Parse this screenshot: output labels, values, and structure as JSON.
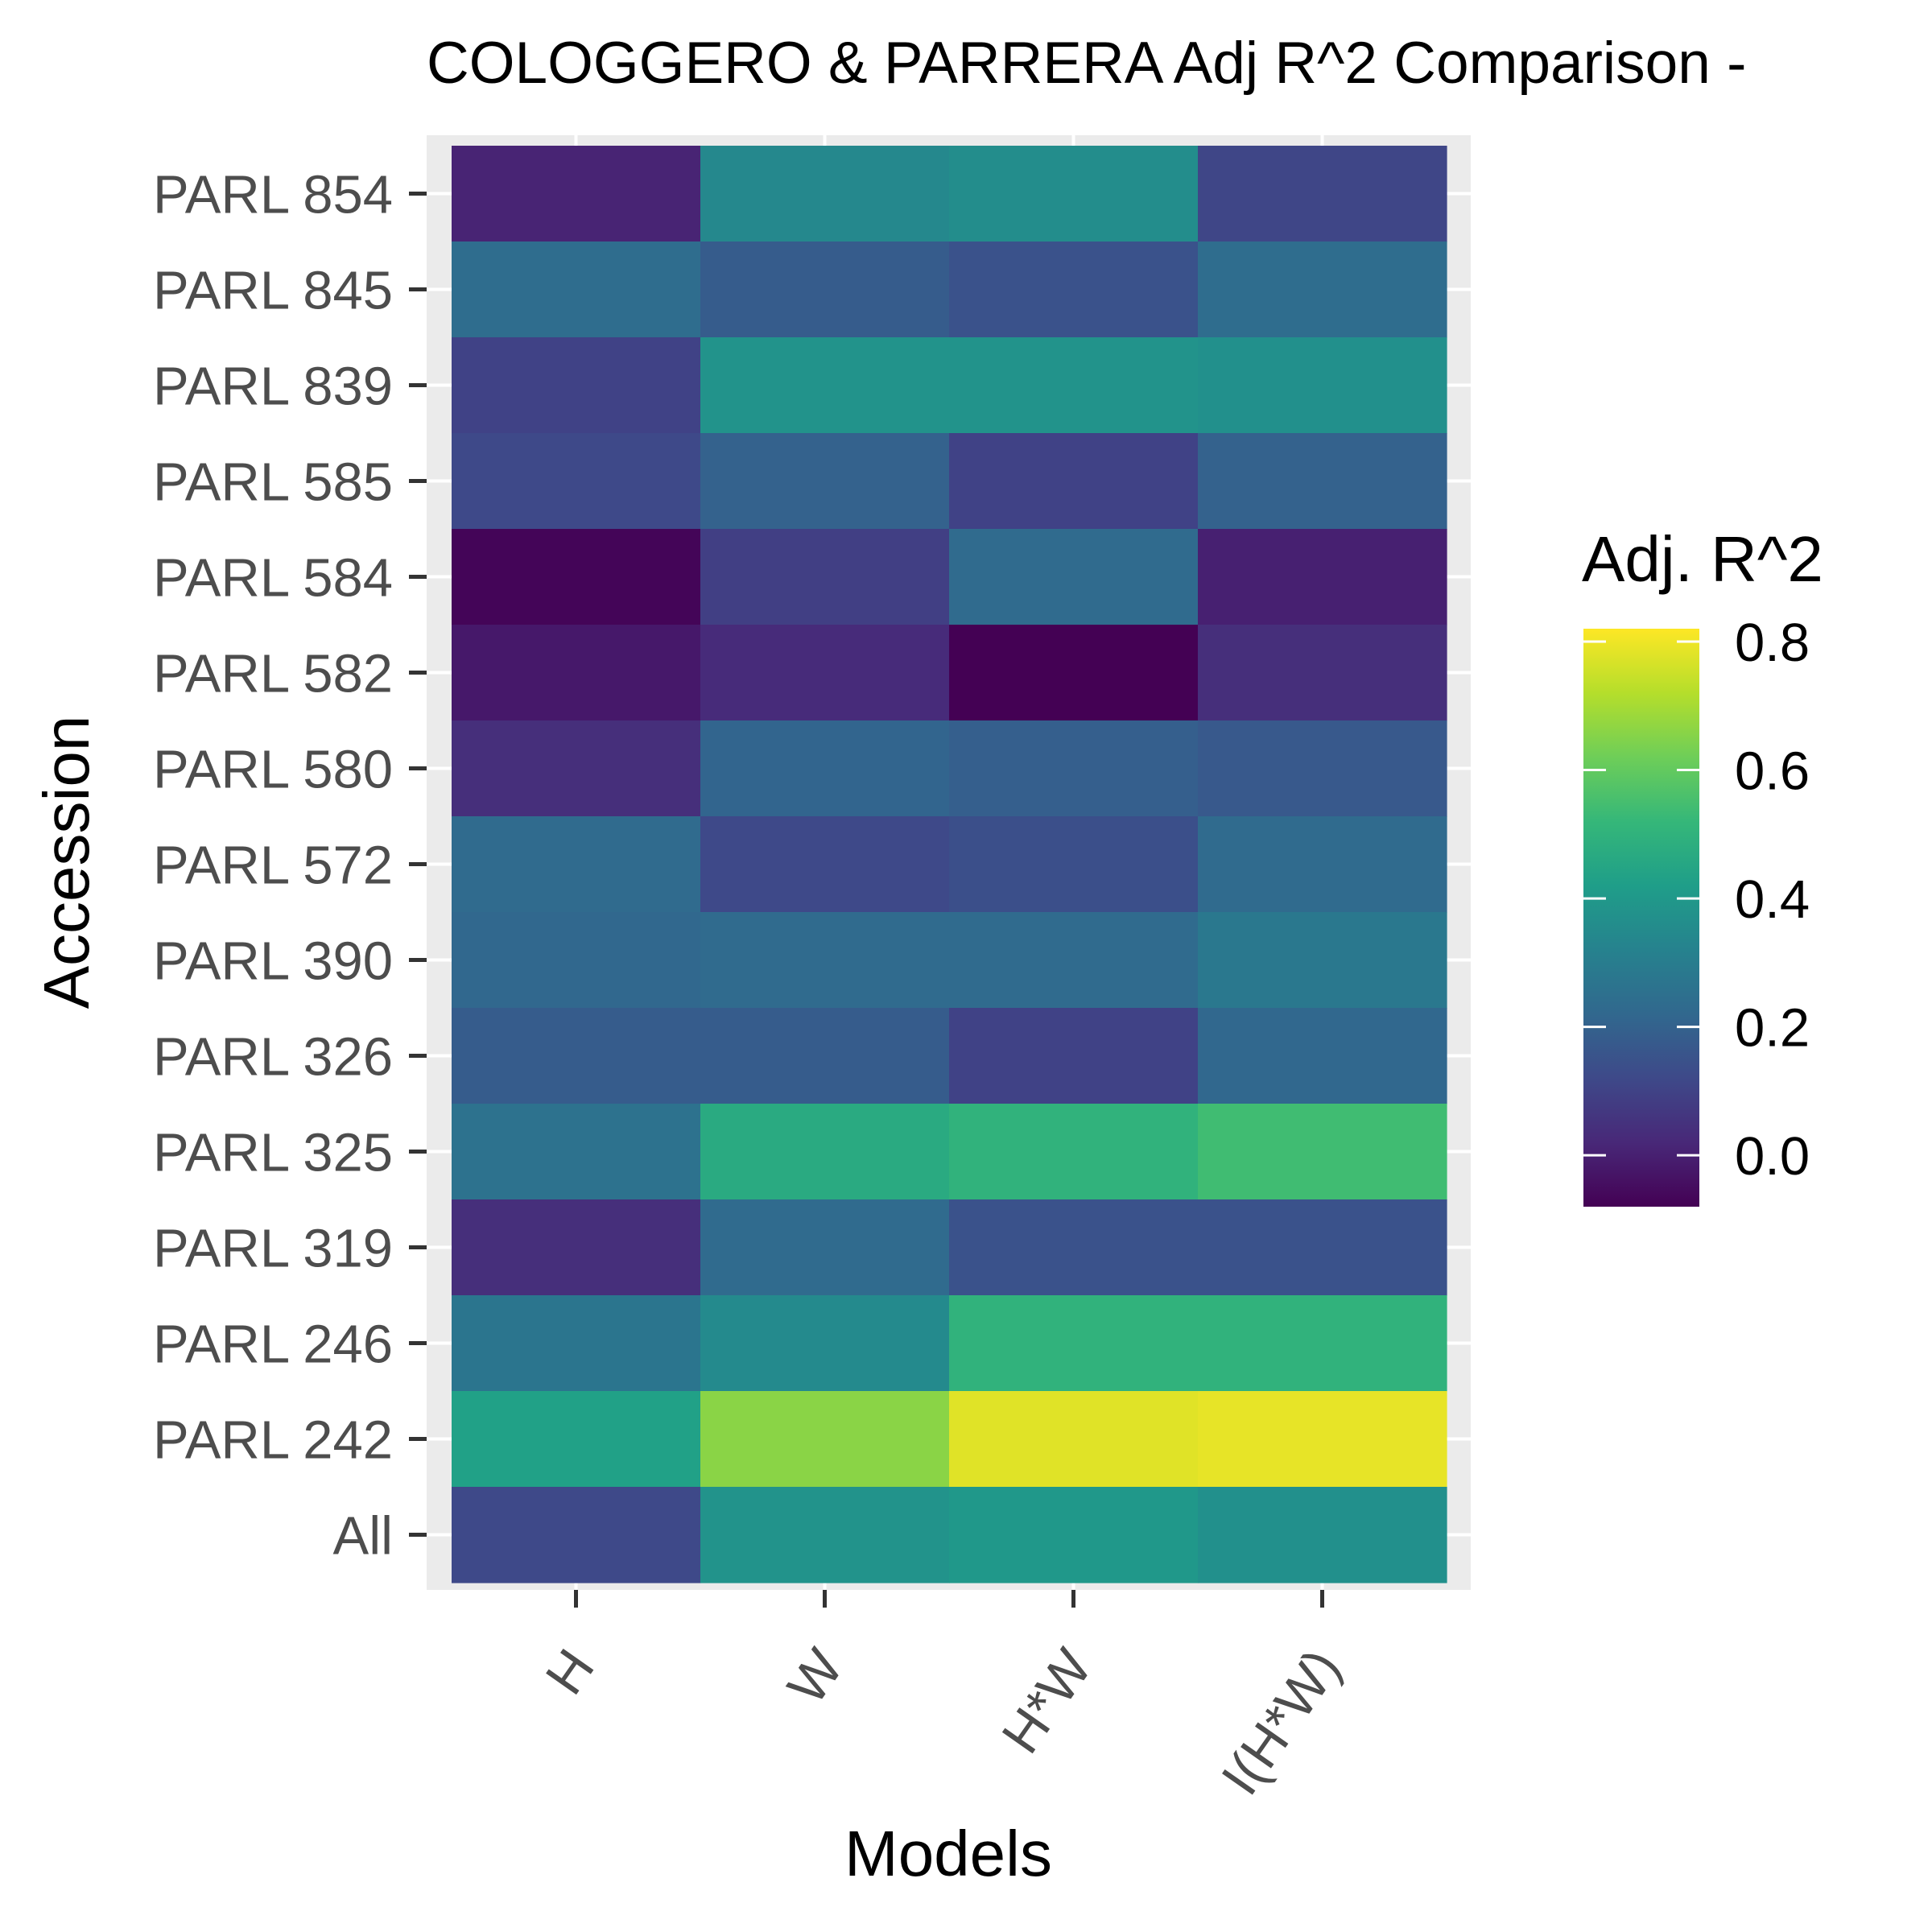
{
  "chart_data": {
    "type": "heatmap",
    "title": "COLOGGERO & PARRERA Adj R^2 Comparison -",
    "xlabel": "Models",
    "ylabel": "Accession",
    "x_categories": [
      "H",
      "W",
      "H*W",
      "I(H*W)"
    ],
    "y_categories": [
      "PARL 854",
      "PARL 845",
      "PARL 839",
      "PARL 585",
      "PARL 584",
      "PARL 582",
      "PARL 580",
      "PARL 572",
      "PARL 390",
      "PARL 326",
      "PARL 325",
      "PARL 319",
      "PARL 246",
      "PARL 242",
      "All"
    ],
    "values": [
      [
        0.01,
        0.34,
        0.36,
        0.11
      ],
      [
        0.24,
        0.18,
        0.15,
        0.24
      ],
      [
        0.1,
        0.38,
        0.38,
        0.37
      ],
      [
        0.12,
        0.2,
        0.1,
        0.2
      ],
      [
        -0.07,
        0.09,
        0.23,
        0.0
      ],
      [
        -0.02,
        0.03,
        -0.08,
        0.04
      ],
      [
        0.04,
        0.21,
        0.19,
        0.17
      ],
      [
        0.23,
        0.12,
        0.14,
        0.23
      ],
      [
        0.22,
        0.23,
        0.23,
        0.28
      ],
      [
        0.18,
        0.18,
        0.1,
        0.22
      ],
      [
        0.26,
        0.47,
        0.5,
        0.54
      ],
      [
        0.04,
        0.23,
        0.15,
        0.15
      ],
      [
        0.27,
        0.35,
        0.5,
        0.5
      ],
      [
        0.43,
        0.66,
        0.78,
        0.79
      ],
      [
        0.12,
        0.38,
        0.4,
        0.37
      ]
    ],
    "colorbar": {
      "title": "Adj. R^2",
      "min": -0.08,
      "max": 0.82,
      "ticks": [
        0.0,
        0.2,
        0.4,
        0.6,
        0.8
      ],
      "tick_labels": [
        "0.0",
        "0.2",
        "0.4",
        "0.6",
        "0.8"
      ],
      "palette": [
        "#440154",
        "#482878",
        "#3e4989",
        "#31688e",
        "#26828e",
        "#1f9e89",
        "#35b779",
        "#6ece58",
        "#b5de2b",
        "#fde725"
      ]
    },
    "panel_background": "#ebebeb",
    "grid": true,
    "legend_position": "right"
  }
}
